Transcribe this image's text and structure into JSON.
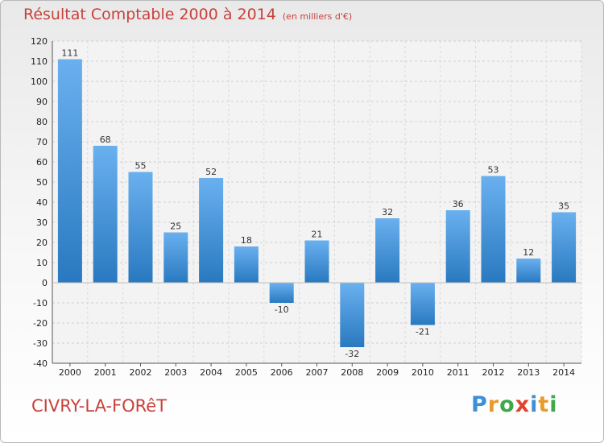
{
  "title": "Résultat Comptable 2000 à 2014",
  "unit": "(en milliers d'€)",
  "commune": "CIVRY-LA-FORêT",
  "logo": [
    "P",
    "r",
    "o",
    "x",
    "i",
    "t",
    "i"
  ],
  "logo_colors": [
    "#3d8fd6",
    "#e89a2a",
    "#3fa84a",
    "#e0422e",
    "#3d8fd6",
    "#e89a2a",
    "#3fa84a"
  ],
  "colors": {
    "bar_top": "#6ab0ef",
    "bar_bottom": "#2979c0",
    "title": "#c8413b"
  },
  "chart_data": {
    "type": "bar",
    "title": "Résultat Comptable 2000 à 2014",
    "unit": "(en milliers d'€)",
    "categories": [
      "2000",
      "2001",
      "2002",
      "2003",
      "2004",
      "2005",
      "2006",
      "2007",
      "2008",
      "2009",
      "2010",
      "2011",
      "2012",
      "2013",
      "2014"
    ],
    "values": [
      111,
      68,
      55,
      25,
      52,
      18,
      -10,
      21,
      -32,
      32,
      -21,
      36,
      53,
      12,
      35
    ],
    "ylim": [
      -40,
      120
    ],
    "yticks": [
      -40,
      -30,
      -20,
      -10,
      0,
      10,
      20,
      30,
      40,
      50,
      60,
      70,
      80,
      90,
      100,
      110,
      120
    ],
    "grid": true,
    "legend": "none"
  }
}
